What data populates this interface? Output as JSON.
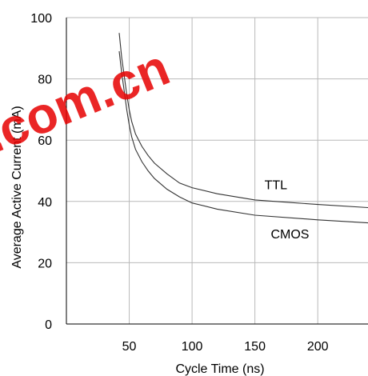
{
  "watermark": ".com.cn",
  "chart_data": {
    "type": "line",
    "title": "",
    "xlabel": "Cycle Time (ns)",
    "ylabel": "Average Active Current (mA)",
    "xlim": [
      0,
      240
    ],
    "ylim": [
      0,
      100
    ],
    "xticks": [
      50,
      100,
      150,
      200
    ],
    "yticks": [
      0,
      20,
      40,
      60,
      80,
      100
    ],
    "grid": true,
    "series": [
      {
        "name": "TTL",
        "x": [
          42,
          44,
          46,
          48,
          50,
          52,
          55,
          60,
          65,
          70,
          80,
          90,
          100,
          120,
          150,
          200,
          240
        ],
        "y": [
          95,
          87,
          81,
          75,
          70,
          66,
          62,
          58,
          55,
          52.5,
          49,
          46,
          44.5,
          42.5,
          40.5,
          39,
          38
        ]
      },
      {
        "name": "CMOS",
        "x": [
          42,
          44,
          46,
          48,
          50,
          52,
          55,
          60,
          65,
          70,
          80,
          90,
          100,
          120,
          150,
          200,
          240
        ],
        "y": [
          89,
          82,
          76,
          70,
          65,
          61,
          57,
          53,
          50,
          47.5,
          44,
          41.5,
          39.5,
          37.5,
          35.5,
          34,
          33
        ]
      }
    ]
  }
}
